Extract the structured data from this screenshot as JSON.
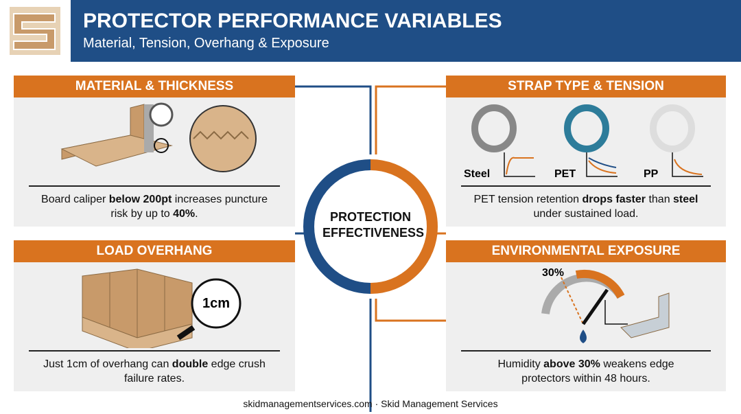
{
  "header": {
    "title": "PROTECTOR PERFORMANCE VARIABLES",
    "subtitle": "Material, Tension, Overhang & Exposure"
  },
  "center": {
    "label": "PROTECTION EFFECTIVENESS"
  },
  "panels": [
    {
      "title": "MATERIAL & THICKNESS",
      "caption": [
        {
          "text": "Board caliper "
        },
        {
          "text": "below 200pt",
          "bold": true
        },
        {
          "text": " increases puncture risk by up to "
        },
        {
          "text": "40%",
          "bold": true
        },
        {
          "text": "."
        }
      ]
    },
    {
      "title": "STRAP TYPE & TENSION",
      "labels": [
        "Steel",
        "PET",
        "PP"
      ],
      "caption": [
        {
          "text": "PET tension retention "
        },
        {
          "text": "drops faster",
          "bold": true
        },
        {
          "text": " than "
        },
        {
          "text": "steel",
          "bold": true
        },
        {
          "text": " under sustained load."
        }
      ]
    },
    {
      "title": "LOAD OVERHANG",
      "labels": [
        "1cm"
      ],
      "caption": [
        {
          "text": "Just 1cm of overhang can "
        },
        {
          "text": "double",
          "bold": true
        },
        {
          "text": " edge crush failure rates."
        }
      ]
    },
    {
      "title": "ENVIRONMENTAL EXPOSURE",
      "labels": [
        "30%"
      ],
      "caption": [
        {
          "text": "Humidity "
        },
        {
          "text": "above 30%",
          "bold": true
        },
        {
          "text": " weakens edge protectors within 48 hours."
        }
      ]
    }
  ],
  "footer": {
    "text": "skidmanagementservices.com · Skid Management Services"
  }
}
